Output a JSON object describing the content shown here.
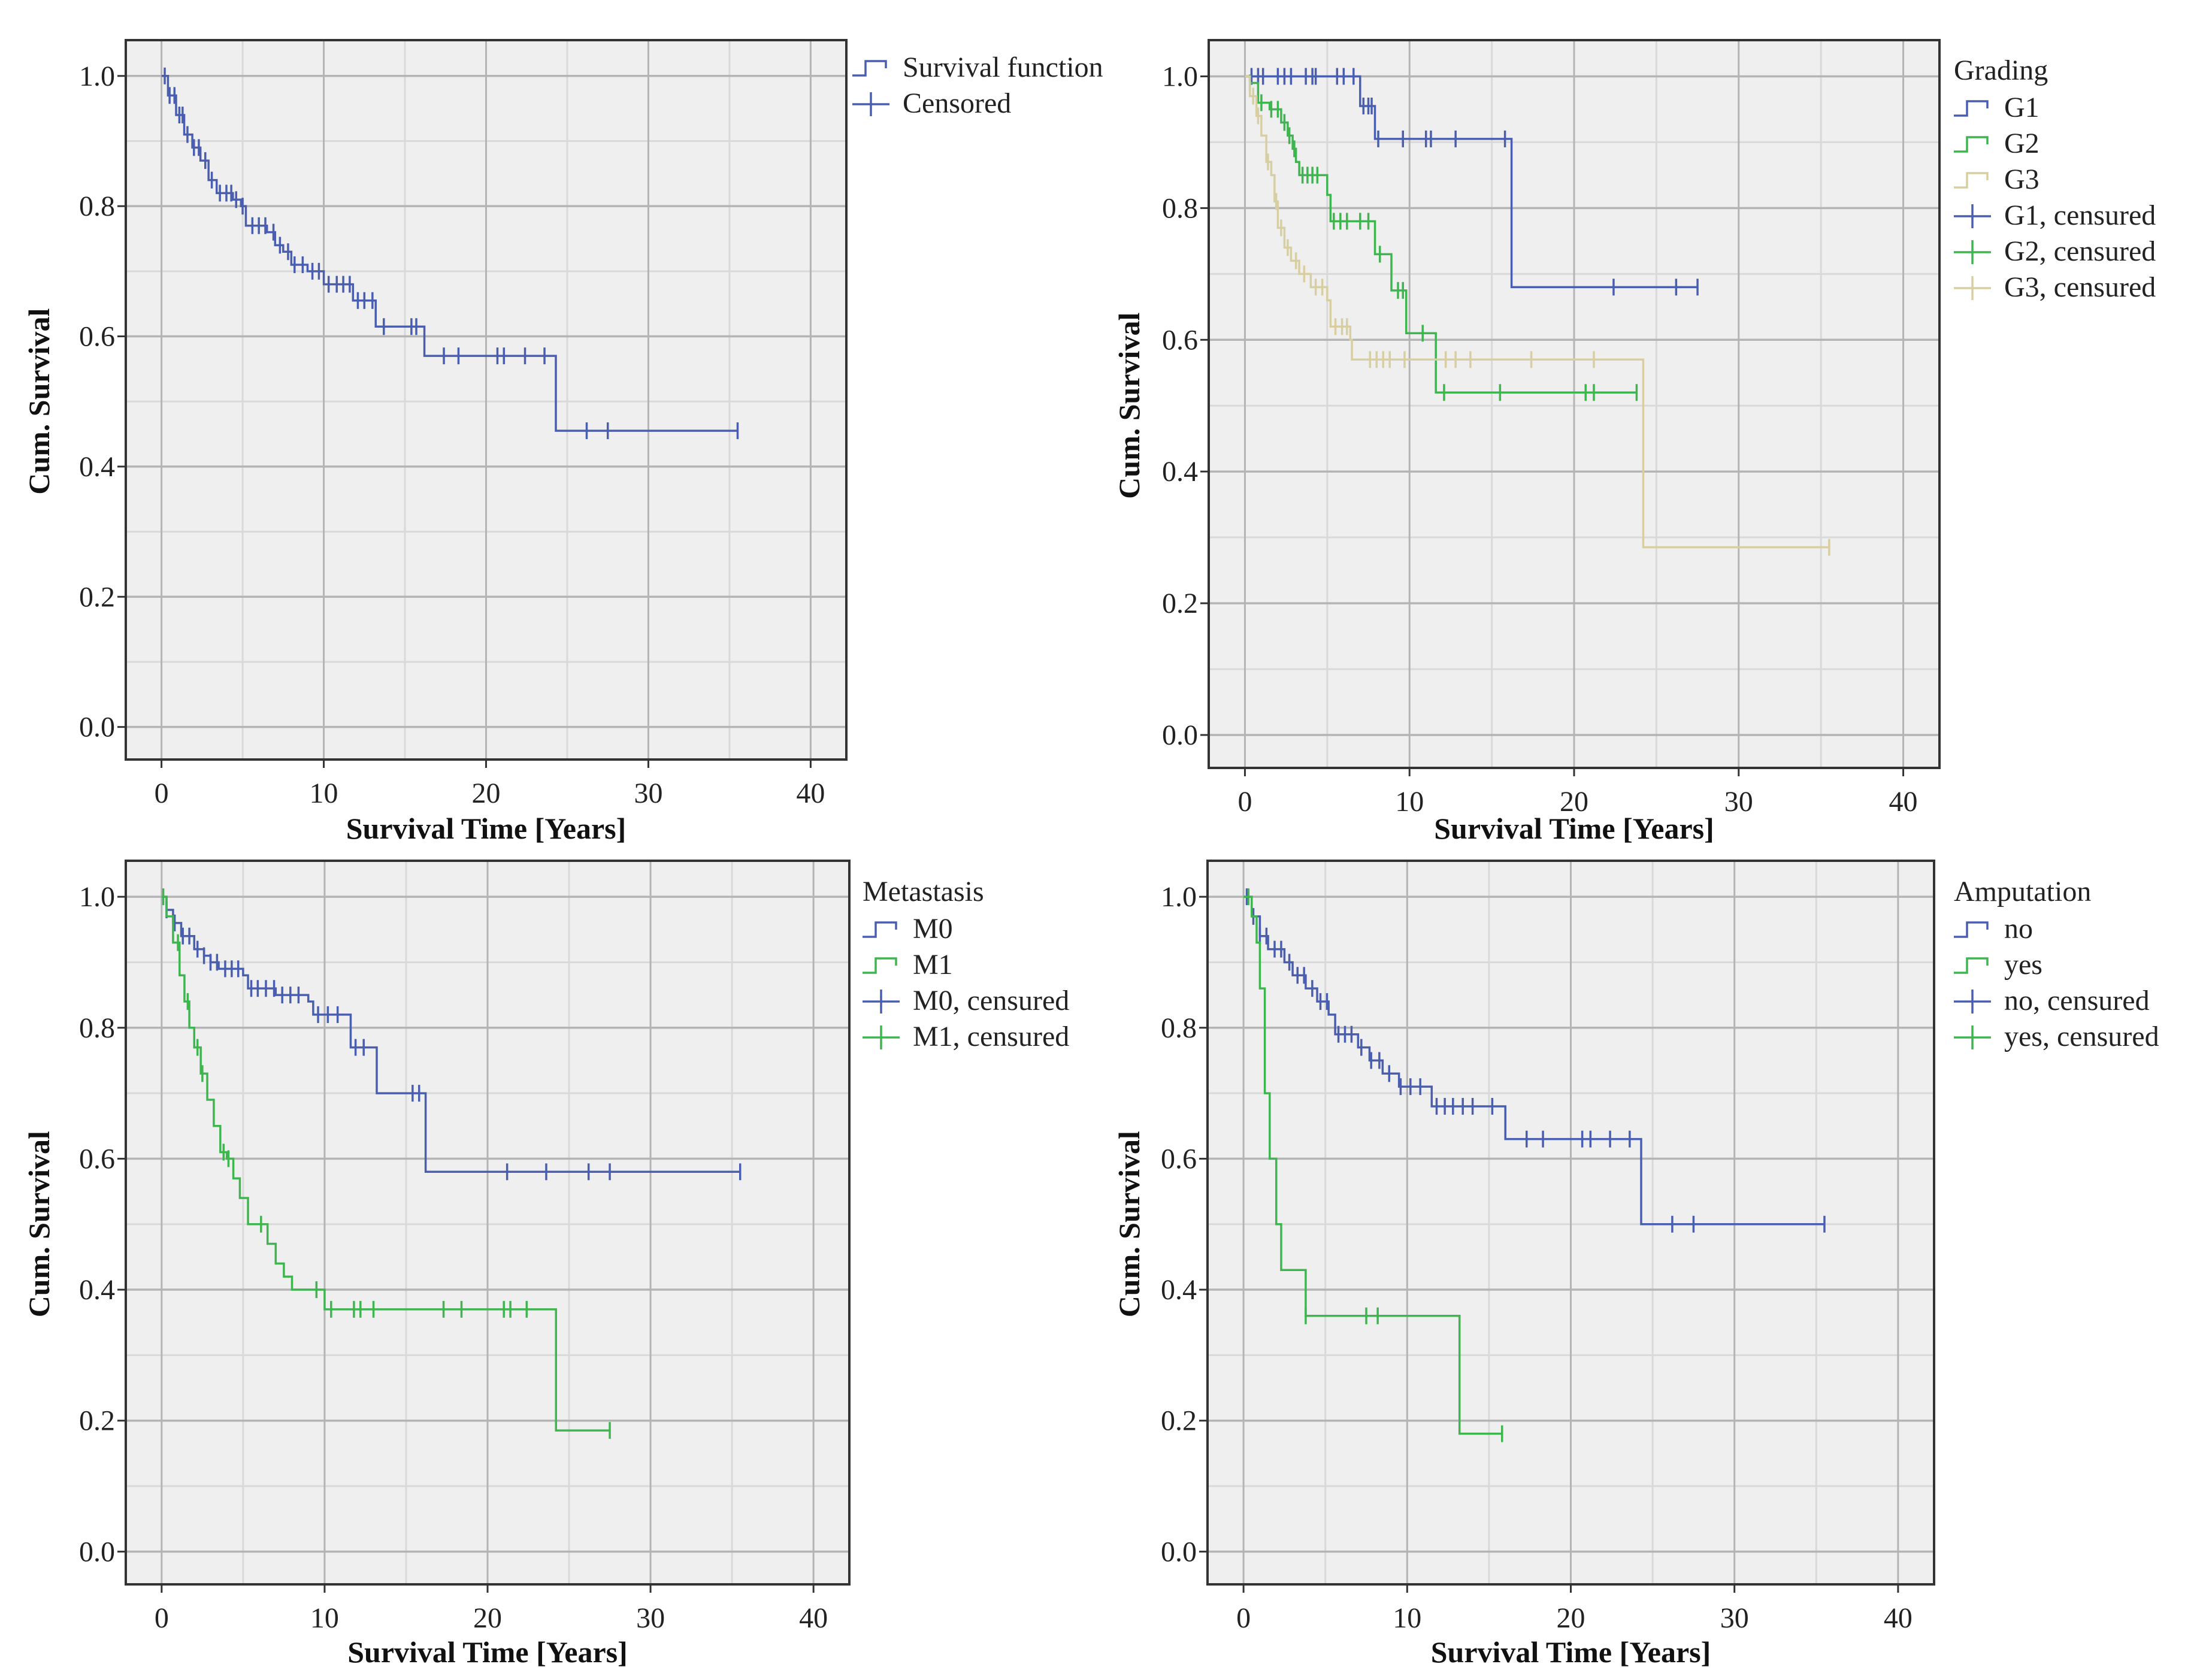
{
  "colors": {
    "blue": "#4a5eb0",
    "green": "#3fb550",
    "beige": "#d7cfa2",
    "plot_bg": "#efefef",
    "grid_major": "#b4b4b4",
    "grid_minor": "#d9d9d9"
  },
  "chart_data": [
    {
      "type": "line",
      "step": true,
      "xlabel": "Survival Time [Years]",
      "ylabel": "Cum. Survival",
      "xlim": [
        -2.2,
        42.2
      ],
      "ylim": [
        -0.05,
        1.055
      ],
      "xticks": [
        "0",
        "10",
        "20",
        "30",
        "40"
      ],
      "xtick_values": [
        0,
        10,
        20,
        30,
        40
      ],
      "yticks": [
        "0.0",
        "0.2",
        "0.4",
        "0.6",
        "0.8",
        "1.0"
      ],
      "ytick_values": [
        0,
        0.2,
        0.4,
        0.6,
        0.8,
        1.0
      ],
      "legend_title": "",
      "legend": [
        "Survival function",
        "Censored"
      ],
      "series": [
        {
          "name": "Survival function",
          "color": "blue",
          "steps": [
            [
              0,
              1.0
            ],
            [
              0.4,
              0.97
            ],
            [
              0.9,
              0.94
            ],
            [
              1.4,
              0.91
            ],
            [
              1.9,
              0.89
            ],
            [
              2.4,
              0.87
            ],
            [
              2.9,
              0.84
            ],
            [
              3.4,
              0.82
            ],
            [
              4.4,
              0.81
            ],
            [
              4.9,
              0.8
            ],
            [
              5.2,
              0.77
            ],
            [
              6.5,
              0.76
            ],
            [
              7.0,
              0.74
            ],
            [
              7.5,
              0.73
            ],
            [
              8.0,
              0.71
            ],
            [
              9.0,
              0.7
            ],
            [
              10.0,
              0.68
            ],
            [
              11.8,
              0.655
            ],
            [
              13.2,
              0.615
            ],
            [
              16.2,
              0.57
            ],
            [
              24.3,
              0.455
            ]
          ],
          "end": 35.5,
          "censored": [
            0.2,
            0.5,
            0.8,
            1.1,
            1.3,
            1.6,
            2.0,
            2.3,
            2.7,
            3.1,
            3.6,
            4.0,
            4.3,
            4.6,
            5.0,
            5.6,
            6.0,
            6.4,
            6.9,
            7.3,
            7.8,
            8.2,
            8.7,
            9.3,
            9.7,
            10.3,
            10.8,
            11.2,
            11.6,
            12.1,
            12.5,
            13.0,
            13.7,
            15.4,
            15.7,
            17.4,
            18.3,
            20.7,
            21.1,
            22.4,
            23.6,
            26.2,
            27.5,
            35.5
          ]
        }
      ]
    },
    {
      "type": "line",
      "step": true,
      "xlabel": "Survival Time [Years]",
      "ylabel": "Cum. Survival",
      "xlim": [
        -2.2,
        42.2
      ],
      "ylim": [
        -0.05,
        1.055
      ],
      "xticks": [
        "0",
        "10",
        "20",
        "30",
        "40"
      ],
      "xtick_values": [
        0,
        10,
        20,
        30,
        40
      ],
      "yticks": [
        "0.0",
        "0.2",
        "0.4",
        "0.6",
        "0.8",
        "1.0"
      ],
      "ytick_values": [
        0,
        0.2,
        0.4,
        0.6,
        0.8,
        1.0
      ],
      "legend_title": "Grading",
      "legend": [
        "G1",
        "G2",
        "G3",
        "G1, censured",
        "G2, censured",
        "G3, censured"
      ],
      "series": [
        {
          "name": "G1",
          "color": "blue",
          "steps": [
            [
              0,
              1.0
            ],
            [
              7.0,
              0.955
            ],
            [
              7.9,
              0.905
            ],
            [
              16.2,
              0.68
            ]
          ],
          "end": 27.5,
          "censored": [
            0.4,
            0.8,
            1.1,
            2.0,
            2.4,
            2.8,
            3.7,
            4.1,
            4.3,
            5.6,
            6.0,
            6.6,
            7.2,
            7.5,
            7.7,
            8.1,
            9.6,
            11.0,
            11.3,
            12.8,
            15.8,
            22.4,
            26.2,
            27.5
          ]
        },
        {
          "name": "G2",
          "color": "green",
          "steps": [
            [
              0,
              1.0
            ],
            [
              0.3,
              0.99
            ],
            [
              0.8,
              0.96
            ],
            [
              1.5,
              0.95
            ],
            [
              2.2,
              0.93
            ],
            [
              2.6,
              0.91
            ],
            [
              2.9,
              0.89
            ],
            [
              3.1,
              0.87
            ],
            [
              3.3,
              0.85
            ],
            [
              5.0,
              0.82
            ],
            [
              5.2,
              0.78
            ],
            [
              7.9,
              0.73
            ],
            [
              8.9,
              0.675
            ],
            [
              9.8,
              0.61
            ],
            [
              11.6,
              0.52
            ]
          ],
          "end": 23.8,
          "censored": [
            0.3,
            1.0,
            1.6,
            2.0,
            2.4,
            2.7,
            3.0,
            3.5,
            3.8,
            4.1,
            4.4,
            5.4,
            5.8,
            6.2,
            7.0,
            7.5,
            8.2,
            9.3,
            9.6,
            10.8,
            12.1,
            15.5,
            20.7,
            21.2,
            23.8
          ]
        },
        {
          "name": "G3",
          "color": "beige",
          "steps": [
            [
              0,
              1.0
            ],
            [
              0.3,
              0.97
            ],
            [
              0.7,
              0.94
            ],
            [
              1.0,
              0.91
            ],
            [
              1.3,
              0.87
            ],
            [
              1.6,
              0.85
            ],
            [
              1.8,
              0.81
            ],
            [
              2.0,
              0.77
            ],
            [
              2.4,
              0.74
            ],
            [
              2.8,
              0.72
            ],
            [
              3.3,
              0.7
            ],
            [
              4.0,
              0.68
            ],
            [
              5.0,
              0.66
            ],
            [
              5.2,
              0.62
            ],
            [
              6.4,
              0.6
            ],
            [
              6.5,
              0.57
            ],
            [
              24.2,
              0.285
            ]
          ],
          "end": 35.5,
          "censored": [
            0.5,
            0.8,
            1.4,
            1.9,
            2.2,
            2.6,
            3.1,
            3.6,
            4.3,
            4.7,
            5.5,
            5.9,
            6.2,
            7.6,
            8.0,
            8.4,
            8.8,
            9.7,
            12.2,
            12.8,
            13.7,
            17.4,
            21.2,
            35.5
          ]
        }
      ]
    },
    {
      "type": "line",
      "step": true,
      "xlabel": "Survival Time [Years]",
      "ylabel": "Cum. Survival",
      "xlim": [
        -2.2,
        42.2
      ],
      "ylim": [
        -0.05,
        1.055
      ],
      "xticks": [
        "0",
        "10",
        "20",
        "30",
        "40"
      ],
      "xtick_values": [
        0,
        10,
        20,
        30,
        40
      ],
      "yticks": [
        "0.0",
        "0.2",
        "0.4",
        "0.6",
        "0.8",
        "1.0"
      ],
      "ytick_values": [
        0,
        0.2,
        0.4,
        0.6,
        0.8,
        1.0
      ],
      "legend_title": "Metastasis",
      "legend": [
        "M0",
        "M1",
        "M0, censured",
        "M1, censured"
      ],
      "series": [
        {
          "name": "M0",
          "color": "blue",
          "steps": [
            [
              0,
              1.0
            ],
            [
              0.3,
              0.98
            ],
            [
              0.7,
              0.96
            ],
            [
              1.2,
              0.94
            ],
            [
              2.0,
              0.92
            ],
            [
              2.6,
              0.91
            ],
            [
              3.0,
              0.9
            ],
            [
              3.5,
              0.89
            ],
            [
              5.0,
              0.88
            ],
            [
              5.3,
              0.86
            ],
            [
              7.0,
              0.85
            ],
            [
              9.0,
              0.84
            ],
            [
              9.3,
              0.82
            ],
            [
              11.6,
              0.77
            ],
            [
              13.2,
              0.7
            ],
            [
              16.2,
              0.58
            ]
          ],
          "end": 35.5,
          "censored": [
            0.3,
            0.8,
            1.3,
            1.7,
            2.2,
            2.6,
            3.0,
            3.4,
            3.9,
            4.3,
            4.7,
            5.5,
            5.9,
            6.4,
            6.9,
            7.4,
            7.9,
            8.4,
            9.6,
            10.2,
            10.8,
            11.9,
            12.4,
            15.4,
            15.8,
            21.2,
            23.6,
            26.2,
            27.5,
            35.5
          ]
        },
        {
          "name": "M1",
          "color": "green",
          "steps": [
            [
              0,
              1.0
            ],
            [
              0.3,
              0.97
            ],
            [
              0.7,
              0.93
            ],
            [
              1.1,
              0.88
            ],
            [
              1.4,
              0.84
            ],
            [
              1.7,
              0.8
            ],
            [
              2.0,
              0.77
            ],
            [
              2.4,
              0.73
            ],
            [
              2.8,
              0.69
            ],
            [
              3.2,
              0.65
            ],
            [
              3.6,
              0.61
            ],
            [
              4.0,
              0.6
            ],
            [
              4.4,
              0.57
            ],
            [
              4.8,
              0.54
            ],
            [
              5.3,
              0.5
            ],
            [
              6.5,
              0.47
            ],
            [
              7.0,
              0.44
            ],
            [
              7.5,
              0.42
            ],
            [
              8.0,
              0.4
            ],
            [
              10.0,
              0.37
            ],
            [
              24.2,
              0.185
            ]
          ],
          "end": 27.5,
          "censored": [
            0.1,
            1.0,
            1.6,
            2.2,
            2.5,
            3.8,
            4.1,
            6.1,
            9.5,
            10.4,
            11.8,
            12.2,
            13.0,
            17.3,
            18.4,
            21.0,
            21.4,
            22.4,
            27.5
          ]
        }
      ]
    },
    {
      "type": "line",
      "step": true,
      "xlabel": "Survival Time [Years]",
      "ylabel": "Cum. Survival",
      "xlim": [
        -2.2,
        42.2
      ],
      "ylim": [
        -0.05,
        1.055
      ],
      "xticks": [
        "0",
        "10",
        "20",
        "30",
        "40"
      ],
      "xtick_values": [
        0,
        10,
        20,
        30,
        40
      ],
      "yticks": [
        "0.0",
        "0.2",
        "0.4",
        "0.6",
        "0.8",
        "1.0"
      ],
      "ytick_values": [
        0,
        0.2,
        0.4,
        0.6,
        0.8,
        1.0
      ],
      "legend_title": "Amputation",
      "legend": [
        "no",
        "yes",
        "no, censured",
        "yes, censured"
      ],
      "series": [
        {
          "name": "no",
          "color": "blue",
          "steps": [
            [
              0,
              1.0
            ],
            [
              0.5,
              0.97
            ],
            [
              1.0,
              0.94
            ],
            [
              1.5,
              0.92
            ],
            [
              2.5,
              0.9
            ],
            [
              3.0,
              0.88
            ],
            [
              3.8,
              0.86
            ],
            [
              4.5,
              0.84
            ],
            [
              5.2,
              0.82
            ],
            [
              5.6,
              0.79
            ],
            [
              7.0,
              0.77
            ],
            [
              7.7,
              0.75
            ],
            [
              8.5,
              0.73
            ],
            [
              9.5,
              0.71
            ],
            [
              11.5,
              0.68
            ],
            [
              16.0,
              0.63
            ],
            [
              24.3,
              0.5
            ]
          ],
          "end": 35.5,
          "censored": [
            0.2,
            0.6,
            1.0,
            1.4,
            1.9,
            2.3,
            2.8,
            3.3,
            3.7,
            4.2,
            4.7,
            5.1,
            5.8,
            6.2,
            6.6,
            7.2,
            7.8,
            8.3,
            8.9,
            9.6,
            10.2,
            10.8,
            11.8,
            12.3,
            12.8,
            13.4,
            14.0,
            15.2,
            17.3,
            18.3,
            20.7,
            21.2,
            22.4,
            23.6,
            26.2,
            27.5,
            35.5
          ]
        },
        {
          "name": "yes",
          "color": "green",
          "steps": [
            [
              0,
              1.0
            ],
            [
              0.5,
              0.97
            ],
            [
              0.8,
              0.93
            ],
            [
              1.0,
              0.86
            ],
            [
              1.3,
              0.7
            ],
            [
              1.6,
              0.6
            ],
            [
              2.0,
              0.5
            ],
            [
              2.3,
              0.43
            ],
            [
              3.8,
              0.36
            ],
            [
              13.2,
              0.18
            ]
          ],
          "end": 15.8,
          "censored": [
            0.3,
            3.8,
            7.5,
            8.2,
            15.8
          ]
        }
      ]
    }
  ]
}
